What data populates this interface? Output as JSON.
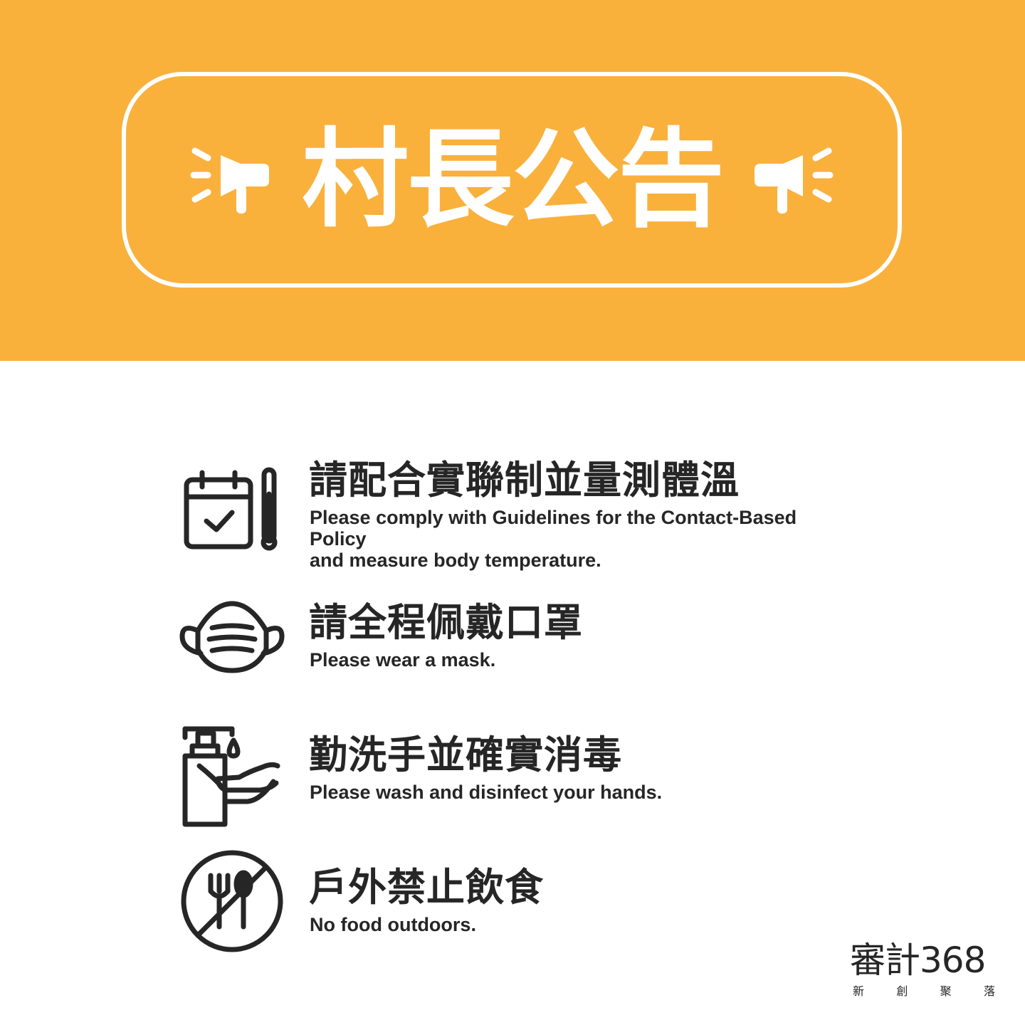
{
  "colors": {
    "banner": "#f9b13c",
    "title_text": "#ffffff",
    "icon_stroke": "#262626",
    "body_text": "#262626"
  },
  "header": {
    "title": "村長公告",
    "left_icon": "megaphone-icon",
    "right_icon": "megaphone-icon"
  },
  "notices": [
    {
      "icon": "calendar-thermometer-icon",
      "title": "請配合實聯制並量測體溫",
      "subtitle": "Please comply with Guidelines for the Contact-Based  Policy\nand measure body temperature."
    },
    {
      "icon": "face-mask-icon",
      "title": "請全程佩戴口罩",
      "subtitle": "Please wear a mask."
    },
    {
      "icon": "hand-sanitizer-icon",
      "title": "勤洗手並確實消毒",
      "subtitle": "Please wash and disinfect your hands."
    },
    {
      "icon": "no-food-icon",
      "title": "戶外禁止飲食",
      "subtitle": "No food outdoors."
    }
  ],
  "logo": {
    "main": "審計368",
    "sub": [
      "新",
      "創",
      "聚",
      "落"
    ]
  }
}
